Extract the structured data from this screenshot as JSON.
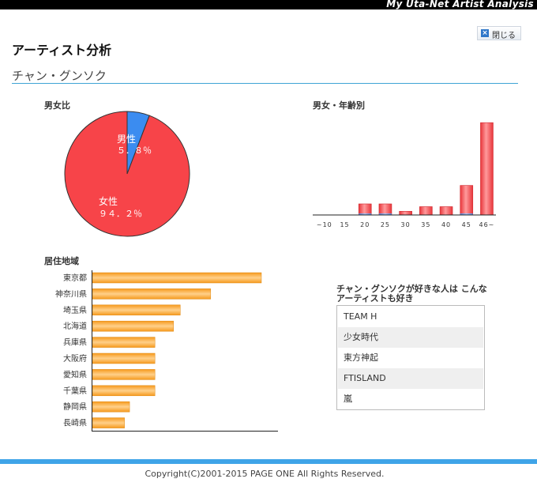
{
  "header": {
    "banner_text": "My Uta-Net Artist Analysis"
  },
  "close_button": {
    "label": "閉じる",
    "icon": "close-x-icon"
  },
  "page_title": "アーティスト分析",
  "artist_name": "チャン・グンソク",
  "gender_chart": {
    "label": "男女比",
    "male_label": "男性",
    "male_percent": "５．８％",
    "female_label": "女性",
    "female_percent": "９４．２％"
  },
  "age_chart": {
    "label": "男女・年齢別"
  },
  "region_chart": {
    "label": "居住地域"
  },
  "recommend": {
    "title": "チャン・グンソクが好きな人は こんなアーティストも好き",
    "items": [
      "TEAM H",
      "少女時代",
      "東方神起",
      "FTISLAND",
      "嵐"
    ]
  },
  "footer": {
    "copyright": "Copyright(C)2001-2015 PAGE ONE All Rights Reserved."
  },
  "colors": {
    "male": "#3b8cf0",
    "female": "#f74449",
    "region_bar": "#f7a02e",
    "accent_line": "#3fa4d6"
  },
  "chart_data": [
    {
      "type": "pie",
      "title": "男女比",
      "categories": [
        "男性",
        "女性"
      ],
      "values": [
        5.8,
        94.2
      ]
    },
    {
      "type": "bar",
      "title": "男女・年齢別",
      "categories": [
        "~10",
        "15",
        "20",
        "25",
        "30",
        "35",
        "40",
        "45",
        "46~"
      ],
      "series": [
        {
          "name": "男性",
          "values": [
            0,
            0,
            1,
            1,
            0,
            0,
            0,
            1,
            0
          ]
        },
        {
          "name": "女性",
          "values": [
            0,
            0,
            11,
            11,
            4,
            9,
            9,
            31,
            100
          ]
        }
      ]
    },
    {
      "type": "bar",
      "orientation": "horizontal",
      "title": "居住地域",
      "categories": [
        "東京都",
        "神奈川県",
        "埼玉県",
        "北海道",
        "兵庫県",
        "大阪府",
        "愛知県",
        "千葉県",
        "静岡県",
        "長崎県"
      ],
      "values": [
        100,
        70,
        52,
        48,
        37,
        37,
        37,
        37,
        22,
        19
      ]
    }
  ]
}
